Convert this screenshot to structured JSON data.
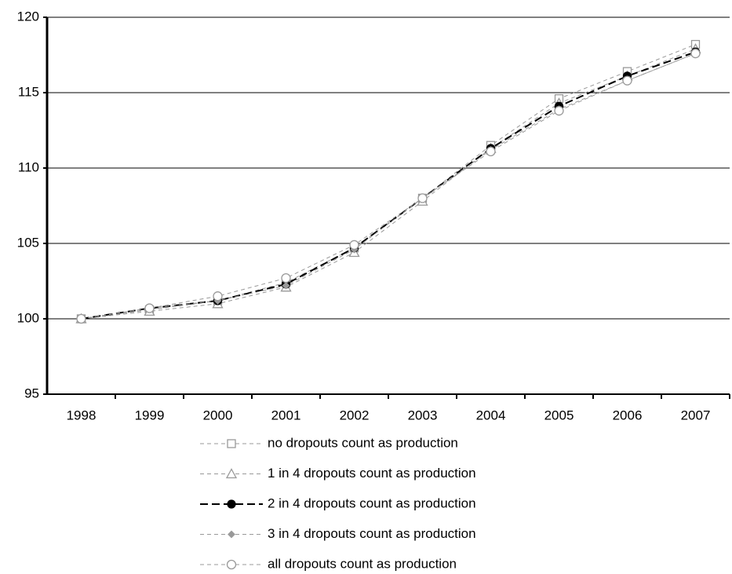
{
  "chart_data": {
    "type": "line",
    "categories": [
      "1998",
      "1999",
      "2000",
      "2001",
      "2002",
      "2003",
      "2004",
      "2005",
      "2006",
      "2007"
    ],
    "ylim": [
      95,
      120
    ],
    "yticks": [
      95,
      100,
      105,
      110,
      115,
      120
    ],
    "grid": true,
    "legend": "bottom",
    "series": [
      {
        "name": "no dropouts count as production",
        "color": "#999999",
        "marker": "square",
        "dash": "5,4",
        "width": 1,
        "values": [
          100,
          100.6,
          101.2,
          102.4,
          104.7,
          108.0,
          111.5,
          114.6,
          116.4,
          118.2
        ]
      },
      {
        "name": "1 in 4 dropouts count as production",
        "color": "#999999",
        "marker": "triangle",
        "dash": "5,4",
        "width": 1,
        "values": [
          100,
          100.5,
          101.0,
          102.1,
          104.4,
          107.8,
          111.3,
          114.3,
          116.1,
          117.9
        ]
      },
      {
        "name": "2 in 4 dropouts count as production",
        "color": "#000000",
        "marker": "dot",
        "dash": "10,5",
        "width": 2,
        "values": [
          100,
          100.7,
          101.2,
          102.3,
          104.7,
          108.0,
          111.3,
          114.1,
          116.1,
          117.7
        ]
      },
      {
        "name": "3 in 4 dropouts count as production",
        "color": "#999999",
        "marker": "diamond",
        "dash": "5,4",
        "width": 1,
        "values": [
          100,
          100.7,
          101.2,
          102.2,
          104.6,
          108.0,
          111.2,
          113.9,
          115.8,
          117.6
        ]
      },
      {
        "name": "all dropouts count as production",
        "color": "#999999",
        "marker": "circle",
        "dash": "5,4",
        "width": 1,
        "values": [
          100,
          100.7,
          101.5,
          102.7,
          104.9,
          108.0,
          111.1,
          113.8,
          115.8,
          117.6
        ]
      }
    ]
  }
}
